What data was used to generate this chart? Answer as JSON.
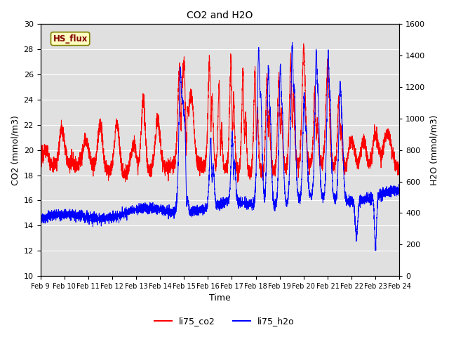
{
  "title": "CO2 and H2O",
  "xlabel": "Time",
  "ylabel_left": "CO2 (mmol/m3)",
  "ylabel_right": "H2O (mmol/m3)",
  "legend_label": "HS_flux",
  "co2_label": "li75_co2",
  "h2o_label": "li75_h2o",
  "co2_color": "#ff0000",
  "h2o_color": "#0000ff",
  "ylim_left": [
    10,
    30
  ],
  "ylim_right": [
    0,
    1600
  ],
  "yticks_left": [
    10,
    12,
    14,
    16,
    18,
    20,
    22,
    24,
    26,
    28,
    30
  ],
  "yticks_right": [
    0,
    200,
    400,
    600,
    800,
    1000,
    1200,
    1400,
    1600
  ],
  "xtick_labels": [
    "Feb 9",
    "Feb 10",
    "Feb 11",
    "Feb 12",
    "Feb 13",
    "Feb 14",
    "Feb 15",
    "Feb 16",
    "Feb 17",
    "Feb 18",
    "Feb 19",
    "Feb 20",
    "Feb 21",
    "Feb 22",
    "Feb 23",
    "Feb 24"
  ],
  "bg_color": "#e0e0e0",
  "grid_color": "#ffffff",
  "legend_box_color": "#ffffc0",
  "legend_text_color": "#800000",
  "legend_border_color": "#808000",
  "fig_width": 6.4,
  "fig_height": 4.8,
  "dpi": 100
}
